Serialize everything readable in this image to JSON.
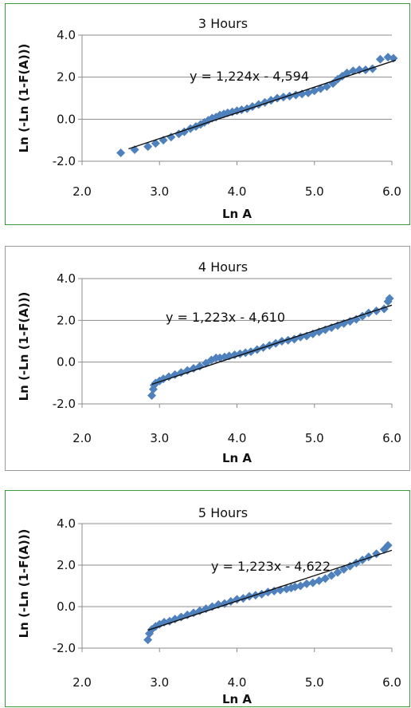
{
  "chart_data": [
    {
      "type": "scatter",
      "title": "3 Hours",
      "xlabel": "Ln A",
      "ylabel": "Ln (-Ln (1-F(A)))",
      "xlim": [
        2.0,
        6.0
      ],
      "ylim": [
        -2.0,
        4.0
      ],
      "xticks": [
        "2.0",
        "3.0",
        "4.0",
        "5.0",
        "6.0"
      ],
      "yticks": [
        "4.0",
        "2.0",
        "0.0",
        "-2.0"
      ],
      "grid": "horizontal",
      "trendline": {
        "slope": 1.224,
        "intercept": -4.594,
        "x_range": [
          2.6,
          6.05
        ],
        "label": "y = 1,224x - 4,594"
      },
      "marker_color": "#4f81bd",
      "series": [
        {
          "x": [
            2.5,
            2.68,
            2.85,
            2.95,
            3.05,
            3.15,
            3.25,
            3.32,
            3.4,
            3.47,
            3.53,
            3.58,
            3.63,
            3.68,
            3.73,
            3.78,
            3.83,
            3.88,
            3.94,
            4.0,
            4.06,
            4.13,
            4.2,
            4.28,
            4.36,
            4.44,
            4.52,
            4.6,
            4.68,
            4.76,
            4.84,
            4.92,
            5.0,
            5.08,
            5.16,
            5.24,
            5.3,
            5.36,
            5.42,
            5.5,
            5.58,
            5.66,
            5.75,
            5.85,
            5.95,
            6.02
          ],
          "y": [
            -1.6,
            -1.45,
            -1.3,
            -1.15,
            -1.0,
            -0.85,
            -0.7,
            -0.6,
            -0.45,
            -0.35,
            -0.25,
            -0.15,
            -0.05,
            0.05,
            0.1,
            0.2,
            0.25,
            0.3,
            0.35,
            0.4,
            0.45,
            0.5,
            0.6,
            0.7,
            0.8,
            0.9,
            1.0,
            1.05,
            1.1,
            1.15,
            1.2,
            1.25,
            1.35,
            1.45,
            1.55,
            1.7,
            1.9,
            2.05,
            2.2,
            2.3,
            2.35,
            2.35,
            2.4,
            2.85,
            2.95,
            2.9
          ]
        }
      ]
    },
    {
      "type": "scatter",
      "title": "4 Hours",
      "xlabel": "Ln A",
      "ylabel": "Ln (-Ln (1-F(A)))",
      "xlim": [
        2.0,
        6.0
      ],
      "ylim": [
        -2.0,
        4.0
      ],
      "xticks": [
        "2.0",
        "3.0",
        "4.0",
        "5.0",
        "6.0"
      ],
      "yticks": [
        "4.0",
        "2.0",
        "0.0",
        "-2.0"
      ],
      "grid": "horizontal",
      "trendline": {
        "slope": 1.223,
        "intercept": -4.61,
        "x_range": [
          2.9,
          6.0
        ],
        "label": "y = 1,223x - 4,610"
      },
      "marker_color": "#4f81bd",
      "series": [
        {
          "x": [
            2.9,
            2.92,
            2.93,
            2.95,
            3.0,
            3.05,
            3.12,
            3.2,
            3.28,
            3.36,
            3.44,
            3.52,
            3.6,
            3.67,
            3.73,
            3.78,
            3.84,
            3.9,
            3.97,
            4.04,
            4.11,
            4.18,
            4.26,
            4.34,
            4.42,
            4.5,
            4.58,
            4.66,
            4.74,
            4.82,
            4.9,
            4.98,
            5.06,
            5.14,
            5.22,
            5.3,
            5.38,
            5.46,
            5.54,
            5.62,
            5.7,
            5.8,
            5.9,
            5.95,
            5.97
          ],
          "y": [
            -1.6,
            -1.3,
            -1.1,
            -1.0,
            -0.9,
            -0.8,
            -0.7,
            -0.6,
            -0.5,
            -0.4,
            -0.3,
            -0.2,
            -0.05,
            0.1,
            0.2,
            0.2,
            0.25,
            0.3,
            0.35,
            0.4,
            0.45,
            0.5,
            0.6,
            0.7,
            0.8,
            0.9,
            1.0,
            1.05,
            1.1,
            1.2,
            1.25,
            1.35,
            1.45,
            1.55,
            1.65,
            1.75,
            1.85,
            1.95,
            2.05,
            2.2,
            2.35,
            2.45,
            2.55,
            2.9,
            3.05
          ]
        }
      ]
    },
    {
      "type": "scatter",
      "title": "5 Hours",
      "xlabel": "Ln A",
      "ylabel": "Ln (-Ln (1-F(A)))",
      "xlim": [
        2.0,
        6.0
      ],
      "ylim": [
        -2.0,
        4.0
      ],
      "xticks": [
        "2.0",
        "3.0",
        "4.0",
        "5.0",
        "6.0"
      ],
      "yticks": [
        "4.0",
        "2.0",
        "0.0",
        "-2.0"
      ],
      "grid": "horizontal",
      "trendline": {
        "slope": 1.223,
        "intercept": -4.622,
        "x_range": [
          2.85,
          6.0
        ],
        "label": "y = 1,223x - 4,622"
      },
      "marker_color": "#4f81bd",
      "series": [
        {
          "x": [
            2.85,
            2.87,
            2.9,
            2.95,
            3.0,
            3.06,
            3.13,
            3.2,
            3.28,
            3.36,
            3.44,
            3.52,
            3.6,
            3.68,
            3.76,
            3.84,
            3.92,
            4.0,
            4.08,
            4.16,
            4.24,
            4.32,
            4.4,
            4.48,
            4.56,
            4.64,
            4.7,
            4.75,
            4.82,
            4.9,
            4.98,
            5.06,
            5.14,
            5.22,
            5.3,
            5.38,
            5.46,
            5.54,
            5.62,
            5.7,
            5.8,
            5.9,
            5.95
          ],
          "y": [
            -1.6,
            -1.3,
            -1.1,
            -0.95,
            -0.85,
            -0.75,
            -0.7,
            -0.6,
            -0.5,
            -0.4,
            -0.3,
            -0.2,
            -0.1,
            0.0,
            0.1,
            0.15,
            0.25,
            0.35,
            0.4,
            0.5,
            0.55,
            0.6,
            0.7,
            0.75,
            0.8,
            0.85,
            0.9,
            0.95,
            1.0,
            1.1,
            1.15,
            1.25,
            1.35,
            1.5,
            1.65,
            1.8,
            1.95,
            2.1,
            2.25,
            2.4,
            2.55,
            2.75,
            2.95
          ]
        }
      ]
    }
  ]
}
